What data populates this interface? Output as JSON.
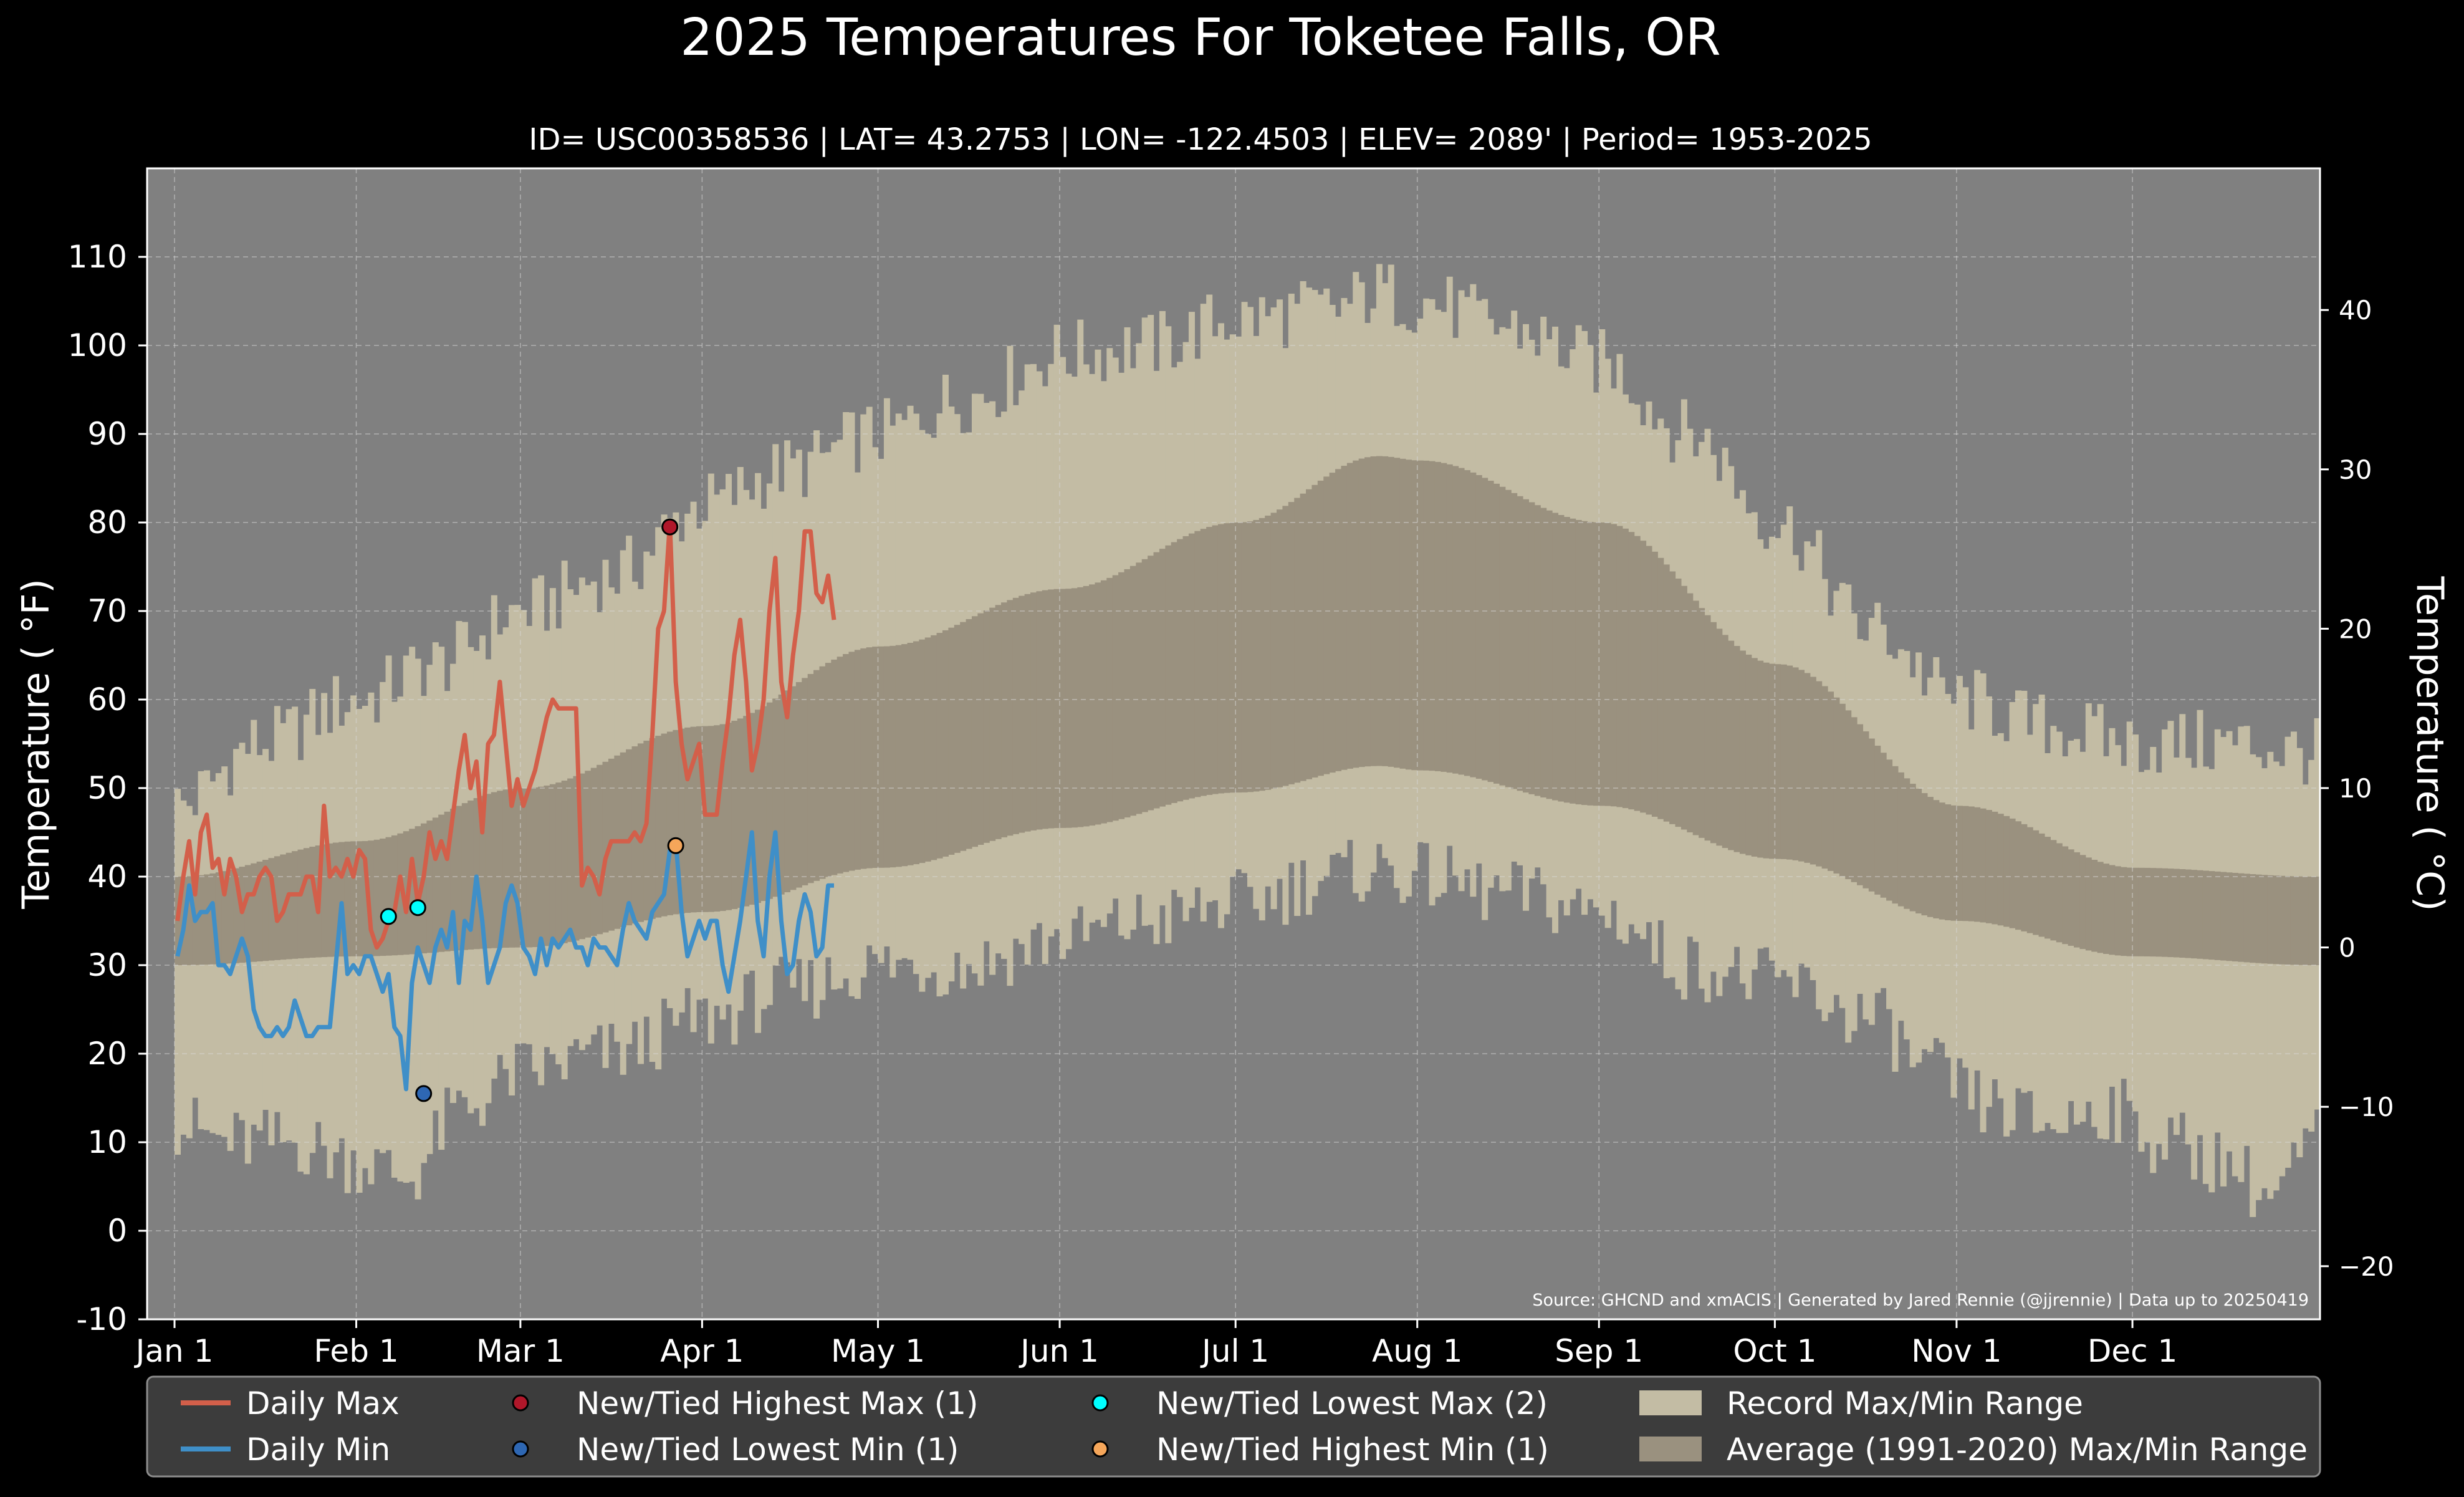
{
  "title": "2025 Temperatures For Toketee Falls, OR",
  "subtitle": "ID= USC00358536 | LAT= 43.2753 | LON= -122.4503 | ELEV= 2089' | Period= 1953-2025",
  "source": "Source: GHCND and xmACIS | Generated by Jared Rennie (@jjrennie) | Data up to 20250419",
  "colors": {
    "background": "#000000",
    "plot_background": "#808080",
    "record_range": "#c3bca4",
    "average_range": "#9a917f",
    "daily_max": "#d35f4a",
    "daily_min": "#3f8fc8",
    "highest_max": "#b0172a",
    "lowest_min": "#2e67b3",
    "lowest_max": "#00ffff",
    "highest_min": "#f5a65a"
  },
  "chart_data": {
    "type": "line",
    "xlabel": "",
    "ylabel": "Temperature ( °F)",
    "ylabel_right": "Temperature ( °C)",
    "ylim": [
      -10,
      120
    ],
    "yticks": [
      -10,
      0,
      10,
      20,
      30,
      40,
      50,
      60,
      70,
      80,
      90,
      100,
      110
    ],
    "yticks_right_c": [
      -20,
      -10,
      0,
      10,
      20,
      30,
      40
    ],
    "grid": true,
    "legend_position": "bottom",
    "x_ticks": [
      {
        "day": 1,
        "label": "Jan 1"
      },
      {
        "day": 32,
        "label": "Feb 1"
      },
      {
        "day": 60,
        "label": "Mar 1"
      },
      {
        "day": 91,
        "label": "Apr 1"
      },
      {
        "day": 121,
        "label": "May 1"
      },
      {
        "day": 152,
        "label": "Jun 1"
      },
      {
        "day": 182,
        "label": "Jul 1"
      },
      {
        "day": 213,
        "label": "Aug 1"
      },
      {
        "day": 244,
        "label": "Sep 1"
      },
      {
        "day": 274,
        "label": "Oct 1"
      },
      {
        "day": 305,
        "label": "Nov 1"
      },
      {
        "day": 335,
        "label": "Dec 1"
      }
    ],
    "xlim_days": [
      1,
      366
    ],
    "average_max_anchors": [
      [
        1,
        40
      ],
      [
        32,
        44
      ],
      [
        60,
        50
      ],
      [
        91,
        57
      ],
      [
        121,
        66
      ],
      [
        152,
        72.5
      ],
      [
        182,
        80
      ],
      [
        206,
        87.5
      ],
      [
        213,
        87
      ],
      [
        244,
        80
      ],
      [
        274,
        64
      ],
      [
        305,
        48
      ],
      [
        335,
        41
      ],
      [
        366,
        40
      ]
    ],
    "average_min_anchors": [
      [
        1,
        30
      ],
      [
        32,
        31
      ],
      [
        60,
        32
      ],
      [
        91,
        36
      ],
      [
        121,
        41
      ],
      [
        152,
        45.5
      ],
      [
        182,
        49.5
      ],
      [
        206,
        52.5
      ],
      [
        213,
        52
      ],
      [
        244,
        48
      ],
      [
        274,
        42
      ],
      [
        305,
        35
      ],
      [
        335,
        31
      ],
      [
        366,
        30
      ]
    ],
    "record_max_anchors": [
      [
        1,
        48
      ],
      [
        15,
        55
      ],
      [
        32,
        60
      ],
      [
        45,
        64
      ],
      [
        60,
        70
      ],
      [
        75,
        74
      ],
      [
        91,
        82
      ],
      [
        105,
        86
      ],
      [
        121,
        90
      ],
      [
        135,
        94
      ],
      [
        152,
        99
      ],
      [
        167,
        100
      ],
      [
        182,
        103
      ],
      [
        198,
        104
      ],
      [
        206,
        106
      ],
      [
        213,
        105
      ],
      [
        228,
        102
      ],
      [
        244,
        98
      ],
      [
        259,
        90
      ],
      [
        274,
        80
      ],
      [
        290,
        68
      ],
      [
        305,
        60
      ],
      [
        320,
        57
      ],
      [
        335,
        55
      ],
      [
        350,
        55
      ],
      [
        366,
        54
      ]
    ],
    "record_min_anchors": [
      [
        1,
        12
      ],
      [
        10,
        10
      ],
      [
        20,
        10
      ],
      [
        32,
        8
      ],
      [
        40,
        6
      ],
      [
        50,
        14
      ],
      [
        60,
        18
      ],
      [
        75,
        20
      ],
      [
        91,
        24
      ],
      [
        105,
        27
      ],
      [
        121,
        30
      ],
      [
        135,
        30
      ],
      [
        152,
        33
      ],
      [
        167,
        35
      ],
      [
        182,
        37
      ],
      [
        198,
        40
      ],
      [
        206,
        41
      ],
      [
        213,
        40
      ],
      [
        228,
        38
      ],
      [
        244,
        36
      ],
      [
        259,
        30
      ],
      [
        274,
        28
      ],
      [
        290,
        24
      ],
      [
        300,
        18
      ],
      [
        310,
        14
      ],
      [
        320,
        12
      ],
      [
        330,
        14
      ],
      [
        340,
        10
      ],
      [
        350,
        8
      ],
      [
        358,
        4
      ],
      [
        366,
        10
      ]
    ],
    "series": [
      {
        "name": "Daily Max",
        "color": "#d35f4a",
        "values": [
          35,
          40,
          44,
          38,
          45,
          47,
          41,
          42,
          38,
          42,
          40,
          36,
          38,
          38,
          40,
          41,
          40,
          35,
          36,
          38,
          38,
          38,
          40,
          40,
          36,
          48,
          40,
          41,
          40,
          42,
          40,
          43,
          42,
          34,
          32,
          33,
          35,
          36,
          40,
          36,
          42,
          37,
          40,
          45,
          42,
          44,
          42,
          47,
          52,
          56,
          50,
          53,
          45,
          55,
          56,
          62,
          55,
          48,
          51,
          48,
          50,
          52,
          55,
          58,
          60,
          59,
          59,
          59,
          59,
          39,
          41,
          40,
          38,
          42,
          44,
          44,
          44,
          44,
          45,
          44,
          46,
          56,
          68,
          70,
          80,
          62,
          55,
          51,
          53,
          55,
          47,
          47,
          47,
          53,
          58,
          65,
          69,
          62,
          52,
          55,
          60,
          70,
          76,
          62,
          58,
          65,
          70,
          79,
          79,
          72,
          71,
          74,
          69
        ]
      },
      {
        "name": "Daily Min",
        "color": "#3f8fc8",
        "values": [
          31,
          34,
          39,
          35,
          36,
          36,
          37,
          30,
          30,
          29,
          31,
          33,
          31,
          25,
          23,
          22,
          22,
          23,
          22,
          23,
          26,
          24,
          22,
          22,
          23,
          23,
          23,
          30,
          37,
          29,
          30,
          29,
          31,
          31,
          29,
          27,
          29,
          23,
          22,
          16,
          28,
          32,
          30,
          28,
          32,
          34,
          32,
          36,
          28,
          35,
          34,
          40,
          35,
          28,
          30,
          32,
          37,
          39,
          37,
          32,
          31,
          29,
          33,
          30,
          33,
          32,
          33,
          34,
          32,
          32,
          30,
          33,
          32,
          32,
          31,
          30,
          34,
          37,
          35,
          34,
          33,
          36,
          37,
          38,
          43,
          44,
          36,
          31,
          33,
          35,
          33,
          35,
          35,
          30,
          27,
          31,
          35,
          40,
          45,
          35,
          31,
          40,
          45,
          35,
          29,
          30,
          35,
          38,
          36,
          31,
          32,
          39,
          39
        ]
      }
    ],
    "markers": [
      {
        "label": "New/Tied Highest Max",
        "count": 1,
        "color": "#b0172a",
        "points": [
          [
            85,
            79.5
          ]
        ]
      },
      {
        "label": "New/Tied Lowest Min",
        "count": 1,
        "color": "#2e67b3",
        "points": [
          [
            43,
            15.5
          ]
        ]
      },
      {
        "label": "New/Tied Lowest Max",
        "count": 2,
        "color": "#00ffff",
        "points": [
          [
            37,
            35.5
          ],
          [
            42,
            36.5
          ]
        ]
      },
      {
        "label": "New/Tied Highest Min",
        "count": 1,
        "color": "#f5a65a",
        "points": [
          [
            86,
            43.5
          ]
        ]
      }
    ]
  },
  "legend": {
    "items": [
      {
        "label": "Daily Max",
        "kind": "line",
        "color": "#d35f4a"
      },
      {
        "label": "Daily Min",
        "kind": "line",
        "color": "#3f8fc8"
      },
      {
        "label": "New/Tied Highest Max (1)",
        "kind": "dot",
        "color": "#b0172a"
      },
      {
        "label": "New/Tied Lowest Min (1)",
        "kind": "dot",
        "color": "#2e67b3"
      },
      {
        "label": "New/Tied Lowest Max (2)",
        "kind": "dot",
        "color": "#00ffff"
      },
      {
        "label": "New/Tied Highest Min (1)",
        "kind": "dot",
        "color": "#f5a65a"
      },
      {
        "label": "Record Max/Min Range",
        "kind": "box",
        "color": "#c3bca4"
      },
      {
        "label": "Average (1991-2020) Max/Min Range",
        "kind": "box",
        "color": "#9a917f"
      }
    ]
  }
}
